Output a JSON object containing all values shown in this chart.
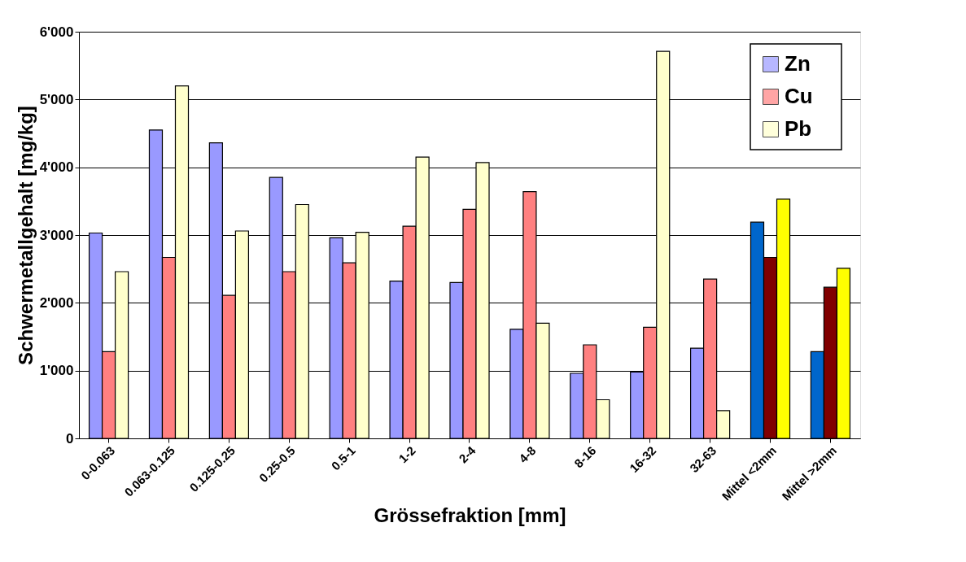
{
  "chart_data": {
    "type": "bar",
    "xlabel": "Grössefraktion [mm]",
    "ylabel": "Schwermetallgehalt [mg/kg]",
    "categories": [
      "0-0.063",
      "0.063-0.125",
      "0.125-0.25",
      "0.25-0.5",
      "0.5-1",
      "1-2",
      "2-4",
      "4-8",
      "8-16",
      "16-32",
      "32-63",
      "Mittel <2mm",
      "Mittel >2mm"
    ],
    "series": [
      {
        "name": "Zn",
        "color": "#9999ff",
        "colors": [
          "#9999ff",
          "#9999ff",
          "#9999ff",
          "#9999ff",
          "#9999ff",
          "#9999ff",
          "#9999ff",
          "#9999ff",
          "#9999ff",
          "#9999ff",
          "#9999ff",
          "#0066cc",
          "#0066cc"
        ],
        "values": [
          3030,
          4550,
          4360,
          3850,
          2960,
          2320,
          2300,
          1610,
          960,
          980,
          1330,
          3190,
          1280
        ]
      },
      {
        "name": "Cu",
        "color": "#ff8080",
        "colors": [
          "#ff8080",
          "#ff8080",
          "#ff8080",
          "#ff8080",
          "#ff8080",
          "#ff8080",
          "#ff8080",
          "#ff8080",
          "#ff8080",
          "#ff8080",
          "#ff8080",
          "#800000",
          "#800000"
        ],
        "values": [
          1280,
          2670,
          2110,
          2460,
          2590,
          3130,
          3380,
          3640,
          1380,
          1640,
          2350,
          2670,
          2230
        ]
      },
      {
        "name": "Pb",
        "color": "#ffffcc",
        "colors": [
          "#ffffcc",
          "#ffffcc",
          "#ffffcc",
          "#ffffcc",
          "#ffffcc",
          "#ffffcc",
          "#ffffcc",
          "#ffffcc",
          "#ffffcc",
          "#ffffcc",
          "#ffffcc",
          "#ffff00",
          "#ffff00"
        ],
        "values": [
          2460,
          5200,
          3060,
          3450,
          3040,
          4150,
          4070,
          1700,
          570,
          5710,
          410,
          3530,
          2510
        ]
      }
    ],
    "ylim": [
      0,
      6000
    ],
    "yticks": [
      0,
      {
        "value": 1000,
        "label": "1'000"
      },
      {
        "value": 2000,
        "label": "2'000"
      },
      {
        "value": 3000,
        "label": "3'000"
      },
      {
        "value": 4000,
        "label": "4'000"
      },
      {
        "value": 5000,
        "label": "5'000"
      },
      {
        "value": 6000,
        "label": "6'000"
      }
    ],
    "grid": "y",
    "legend": "top right"
  }
}
